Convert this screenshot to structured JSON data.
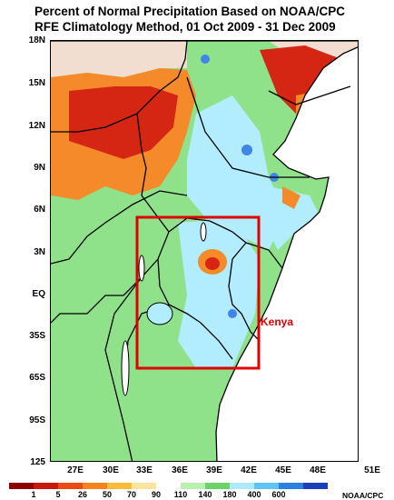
{
  "title": {
    "line1": "Percent of Normal Precipitation Based on NOAA/CPC",
    "line2": "RFE Climatology Method, 01 Oct 2009 - 31 Dec 2009"
  },
  "y_ticks": [
    "18N",
    "15N",
    "12N",
    "9N",
    "6N",
    "3N",
    "EQ",
    "35S",
    "65S",
    "95S",
    "125"
  ],
  "x_ticks": [
    "27E",
    "30E",
    "33E",
    "36E",
    "39E",
    "42E",
    "45E",
    "48E",
    "51E"
  ],
  "annotation": "Kenya",
  "annotation_color": "#dd0000",
  "highlight_box_color": "#e00000",
  "legend": {
    "labels": [
      "1",
      "5",
      "26",
      "50",
      "70",
      "90",
      "110",
      "140",
      "180",
      "400",
      "600"
    ],
    "colors": [
      "#8b0000",
      "#c81a0c",
      "#e84a12",
      "#f5821e",
      "#fbbb38",
      "#fde49e",
      "#ffffff",
      "#b8f0b0",
      "#6cd36a",
      "#aeeaff",
      "#5ec4f2",
      "#2d7fe0",
      "#1a3fb8"
    ],
    "credit": "NOAA/CPC"
  },
  "map_colors": {
    "ocean": "#ffffff",
    "land_no_data": "#f2ddd1",
    "dry_orange": "#f58a2a",
    "dry_red": "#d52614",
    "wet_green": "#8fe28a",
    "wet_light_blue": "#b2ecff",
    "wet_blue": "#3f86e6",
    "border": "#000000"
  }
}
